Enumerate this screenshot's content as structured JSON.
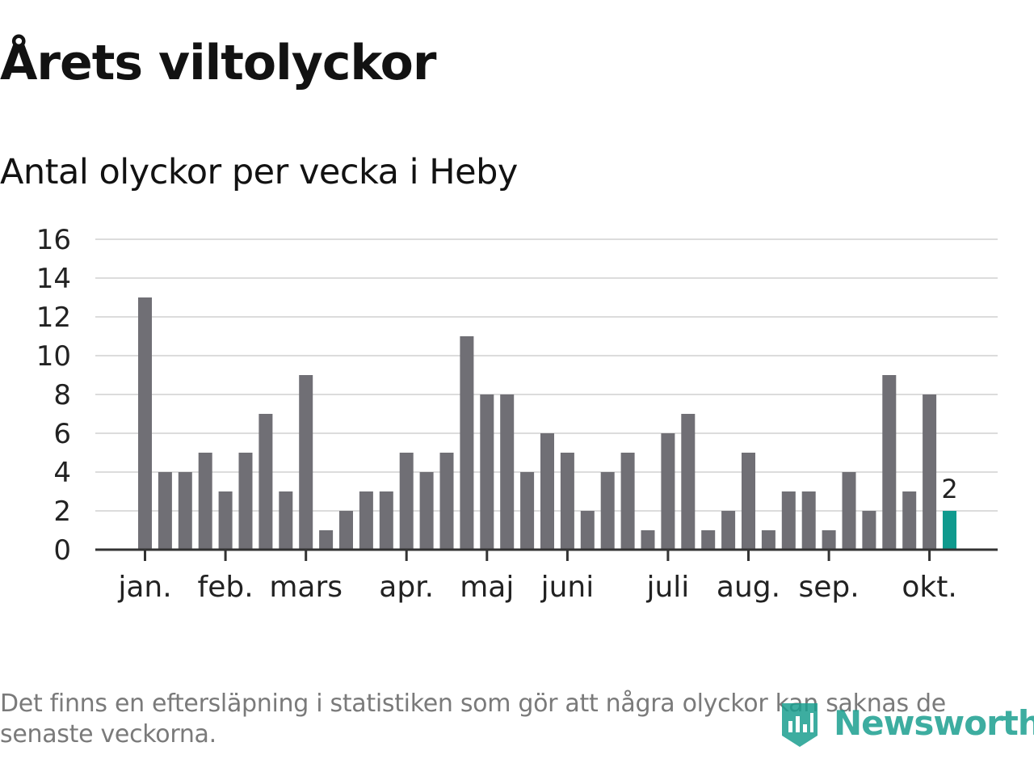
{
  "title": "Årets viltolyckor",
  "subtitle": "Antal olyckor per vecka i Heby",
  "footnote": "Det finns en eftersläpning i statistiken som gör att några olyckor kan saknas de senaste veckorna.",
  "logo": {
    "text": "Newsworthy",
    "icon": "newsworthy-logo-icon"
  },
  "colors": {
    "bar": "#706f75",
    "highlight": "#109a8e",
    "grid": "#dcdcdc",
    "axis": "#333333",
    "text": "#222222",
    "brand": "#1c9f90"
  },
  "chart_data": {
    "type": "bar",
    "title": "Antal olyckor per vecka i Heby",
    "xlabel": "",
    "ylabel": "",
    "ylim": [
      0,
      16
    ],
    "yticks": [
      0,
      2,
      4,
      6,
      8,
      10,
      12,
      14,
      16
    ],
    "grid": true,
    "values": [
      13,
      4,
      4,
      5,
      3,
      5,
      7,
      3,
      9,
      1,
      2,
      3,
      3,
      5,
      4,
      5,
      11,
      8,
      8,
      4,
      6,
      5,
      2,
      4,
      5,
      1,
      6,
      7,
      1,
      2,
      5,
      1,
      3,
      3,
      1,
      4,
      2,
      9,
      3,
      8,
      2
    ],
    "highlight_index": 40,
    "highlight_label": "2",
    "months": [
      {
        "label": "jan.",
        "week_index": 0
      },
      {
        "label": "feb.",
        "week_index": 4
      },
      {
        "label": "mars",
        "week_index": 8
      },
      {
        "label": "apr.",
        "week_index": 13
      },
      {
        "label": "maj",
        "week_index": 17
      },
      {
        "label": "juni",
        "week_index": 21
      },
      {
        "label": "juli",
        "week_index": 26
      },
      {
        "label": "aug.",
        "week_index": 30
      },
      {
        "label": "sep.",
        "week_index": 34
      },
      {
        "label": "okt.",
        "week_index": 39
      }
    ]
  }
}
